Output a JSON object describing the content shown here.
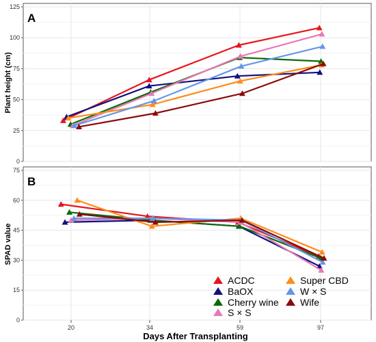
{
  "chart_data": {
    "type": "line",
    "xlabel": "Days After Transplanting",
    "categories": [
      "20",
      "34",
      "59",
      "97"
    ],
    "legend_position": "bottom-right",
    "grid": true,
    "legend_order": [
      "ACDC",
      "Super CBD",
      "BaOX",
      "W × S",
      "Cherry wine",
      "Wife",
      "S × S"
    ],
    "panels": [
      {
        "label": "A",
        "ylabel": "Plant height (cm)",
        "ylim": [
          0,
          125
        ],
        "yticks": [
          0,
          25,
          50,
          75,
          100,
          125
        ],
        "series": [
          {
            "name": "ACDC",
            "color": "#e8141c",
            "x": [
              18.6,
              33.9,
              58.7,
              96.4
            ],
            "values": [
              33,
              66,
              94,
              108
            ]
          },
          {
            "name": "BaOX",
            "color": "#10107e",
            "x": [
              19.2,
              33.9,
              58.3,
              96.6
            ],
            "values": [
              36,
              61,
              69,
              72
            ]
          },
          {
            "name": "Cherry wine",
            "color": "#0a6b0a",
            "x": [
              19.9,
              34.3,
              58.9,
              97.2
            ],
            "values": [
              30,
              56,
              84,
              81
            ]
          },
          {
            "name": "S × S",
            "color": "#e878b4",
            "x": [
              20.3,
              34.5,
              59.3,
              97.6
            ],
            "values": [
              29,
              55,
              85,
              103
            ]
          },
          {
            "name": "Super CBD",
            "color": "#ff8c1a",
            "x": [
              19.5,
              34.8,
              59.1,
              97.4
            ],
            "values": [
              35,
              46,
              65,
              78
            ]
          },
          {
            "name": "W × S",
            "color": "#6496e8",
            "x": [
              20.6,
              35.2,
              59.6,
              97.9
            ],
            "values": [
              29,
              49,
              77,
              93
            ]
          },
          {
            "name": "Wife",
            "color": "#8b0a0a",
            "x": [
              21.4,
              35.6,
              60.1,
              98.3
            ],
            "values": [
              28,
              39,
              55,
              79
            ]
          }
        ]
      },
      {
        "label": "B",
        "ylabel": "SPAD value",
        "ylim": [
          0,
          75
        ],
        "yticks": [
          0,
          15,
          30,
          45,
          60,
          75
        ],
        "series": [
          {
            "name": "ACDC",
            "color": "#e8141c",
            "x": [
              18.2,
              33.6,
              58.5,
              96.1
            ],
            "values": [
              58,
              52,
              49,
              32
            ]
          },
          {
            "name": "BaOX",
            "color": "#10107e",
            "x": [
              18.9,
              34.2,
              58.7,
              96.5
            ],
            "values": [
              49,
              50,
              47,
              27
            ]
          },
          {
            "name": "Cherry wine",
            "color": "#0a6b0a",
            "x": [
              19.7,
              34.6,
              58.9,
              97.1
            ],
            "values": [
              54,
              50,
              47,
              31
            ]
          },
          {
            "name": "S × S",
            "color": "#e878b4",
            "x": [
              20.0,
              34.8,
              59.2,
              97.3
            ],
            "values": [
              50,
              51,
              49,
              25
            ]
          },
          {
            "name": "Super CBD",
            "color": "#ff8c1a",
            "x": [
              21.1,
              34.6,
              59.4,
              97.7
            ],
            "values": [
              60,
              47,
              51,
              34
            ]
          },
          {
            "name": "W × S",
            "color": "#6496e8",
            "x": [
              20.5,
              35.0,
              59.7,
              98.0
            ],
            "values": [
              51,
              51,
              50,
              29
            ]
          },
          {
            "name": "Wife",
            "color": "#8b0a0a",
            "x": [
              21.5,
              35.6,
              60.0,
              98.6
            ],
            "values": [
              53,
              49,
              50,
              31
            ]
          }
        ]
      }
    ]
  }
}
